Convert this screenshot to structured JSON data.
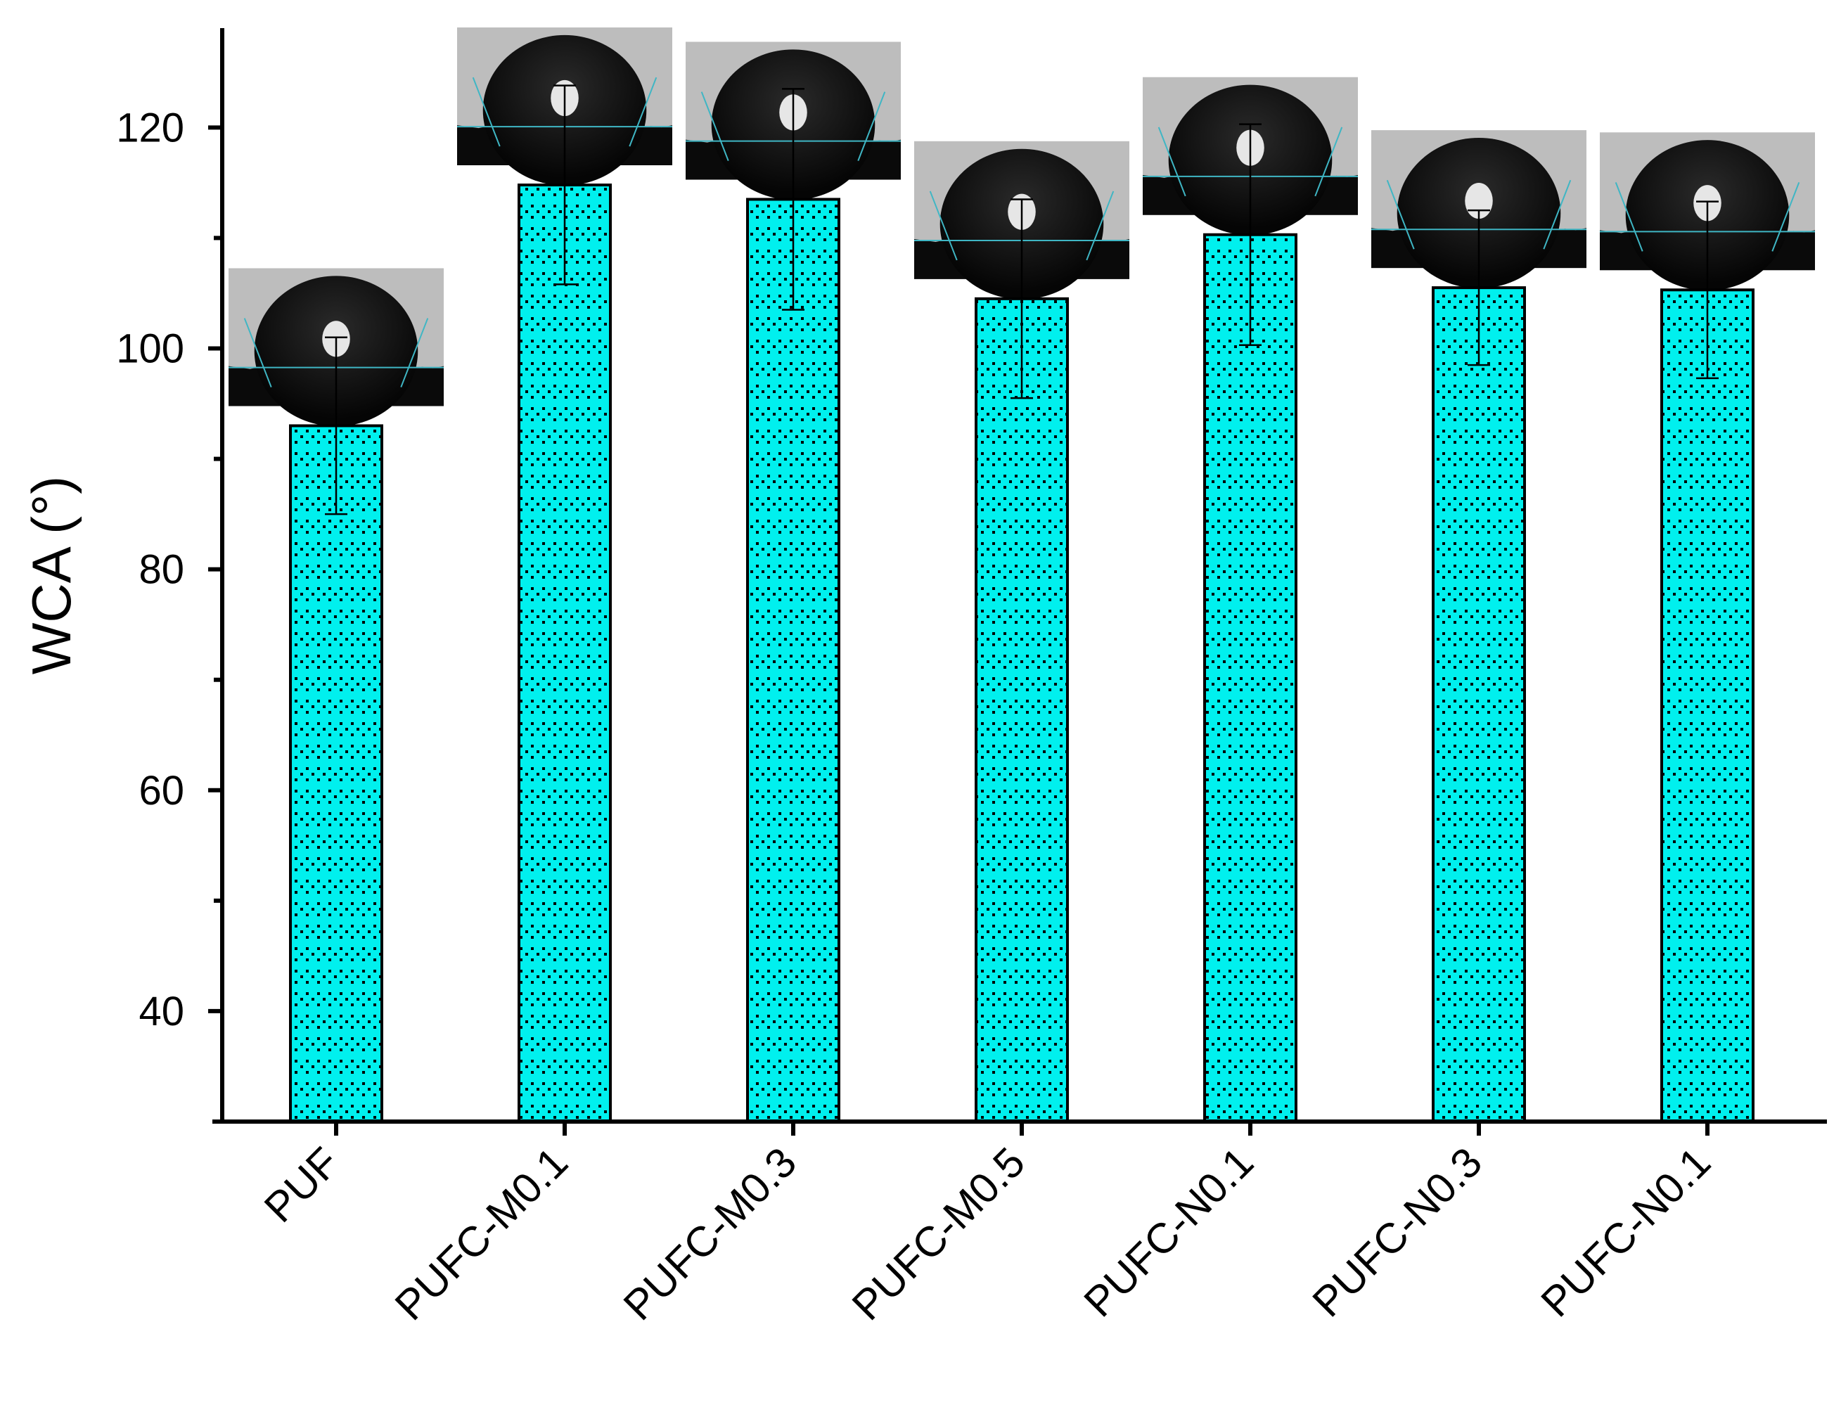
{
  "chart_data": {
    "type": "bar",
    "ylabel": "WCA (°)",
    "xlabel": "",
    "ylim": [
      30,
      129
    ],
    "yticks": [
      40,
      60,
      80,
      100,
      120
    ],
    "categories": [
      "PUF",
      "PUFC-M0.1",
      "PUFC-M0.3",
      "PUFC-M0.5",
      "PUFC-N0.1",
      "PUFC-N0.3",
      "PUFC-N0.1"
    ],
    "values": [
      93.0,
      114.8,
      113.5,
      104.5,
      110.3,
      105.5,
      105.3
    ],
    "errors": [
      8.0,
      9.0,
      10.0,
      9.0,
      10.0,
      7.0,
      8.0
    ],
    "bar_color": "#00f0ee",
    "bar_pattern": "dot-pattern",
    "grid": false,
    "legend": "none",
    "insets": "water-droplet-photo above each bar"
  }
}
